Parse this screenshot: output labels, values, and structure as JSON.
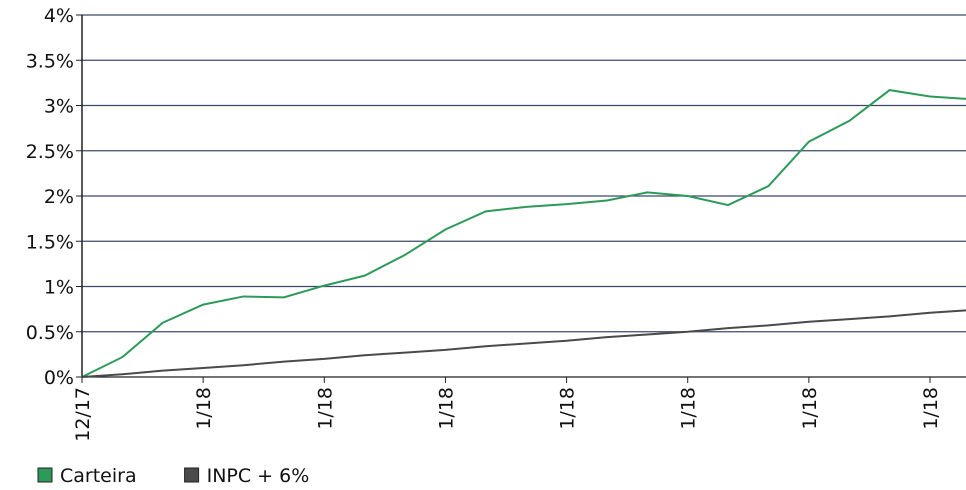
{
  "chart_data": {
    "type": "line",
    "categories": [
      "12/17",
      null,
      null,
      "1/18",
      null,
      null,
      "1/18",
      null,
      null,
      "1/18",
      null,
      null,
      "1/18",
      null,
      null,
      "1/18",
      null,
      null,
      "1/18",
      null,
      null,
      "1/18",
      null
    ],
    "series": [
      {
        "name": "Carteira",
        "color": "#2e9a5a",
        "values": [
          0,
          0.22,
          0.6,
          0.8,
          0.89,
          0.88,
          1.01,
          1.12,
          1.35,
          1.63,
          1.83,
          1.88,
          1.91,
          1.95,
          2.04,
          2.0,
          1.9,
          2.11,
          2.6,
          2.83,
          3.17,
          3.1,
          3.07
        ]
      },
      {
        "name": "INPC + 6%",
        "color": "#4a4a4a",
        "values": [
          0,
          0.03,
          0.07,
          0.1,
          0.13,
          0.17,
          0.2,
          0.24,
          0.27,
          0.3,
          0.34,
          0.37,
          0.4,
          0.44,
          0.47,
          0.5,
          0.54,
          0.57,
          0.61,
          0.64,
          0.67,
          0.71,
          0.74
        ]
      }
    ],
    "ylim": [
      0,
      4
    ],
    "yticks": [
      {
        "value": 0,
        "label": "0%"
      },
      {
        "value": 0.5,
        "label": "0.5%"
      },
      {
        "value": 1,
        "label": "1%"
      },
      {
        "value": 1.5,
        "label": "1.5%"
      },
      {
        "value": 2,
        "label": "2%"
      },
      {
        "value": 2.5,
        "label": "2.5%"
      },
      {
        "value": 3,
        "label": "3%"
      },
      {
        "value": 3.5,
        "label": "3.5%"
      },
      {
        "value": 4,
        "label": "4%"
      }
    ],
    "grid": true
  }
}
